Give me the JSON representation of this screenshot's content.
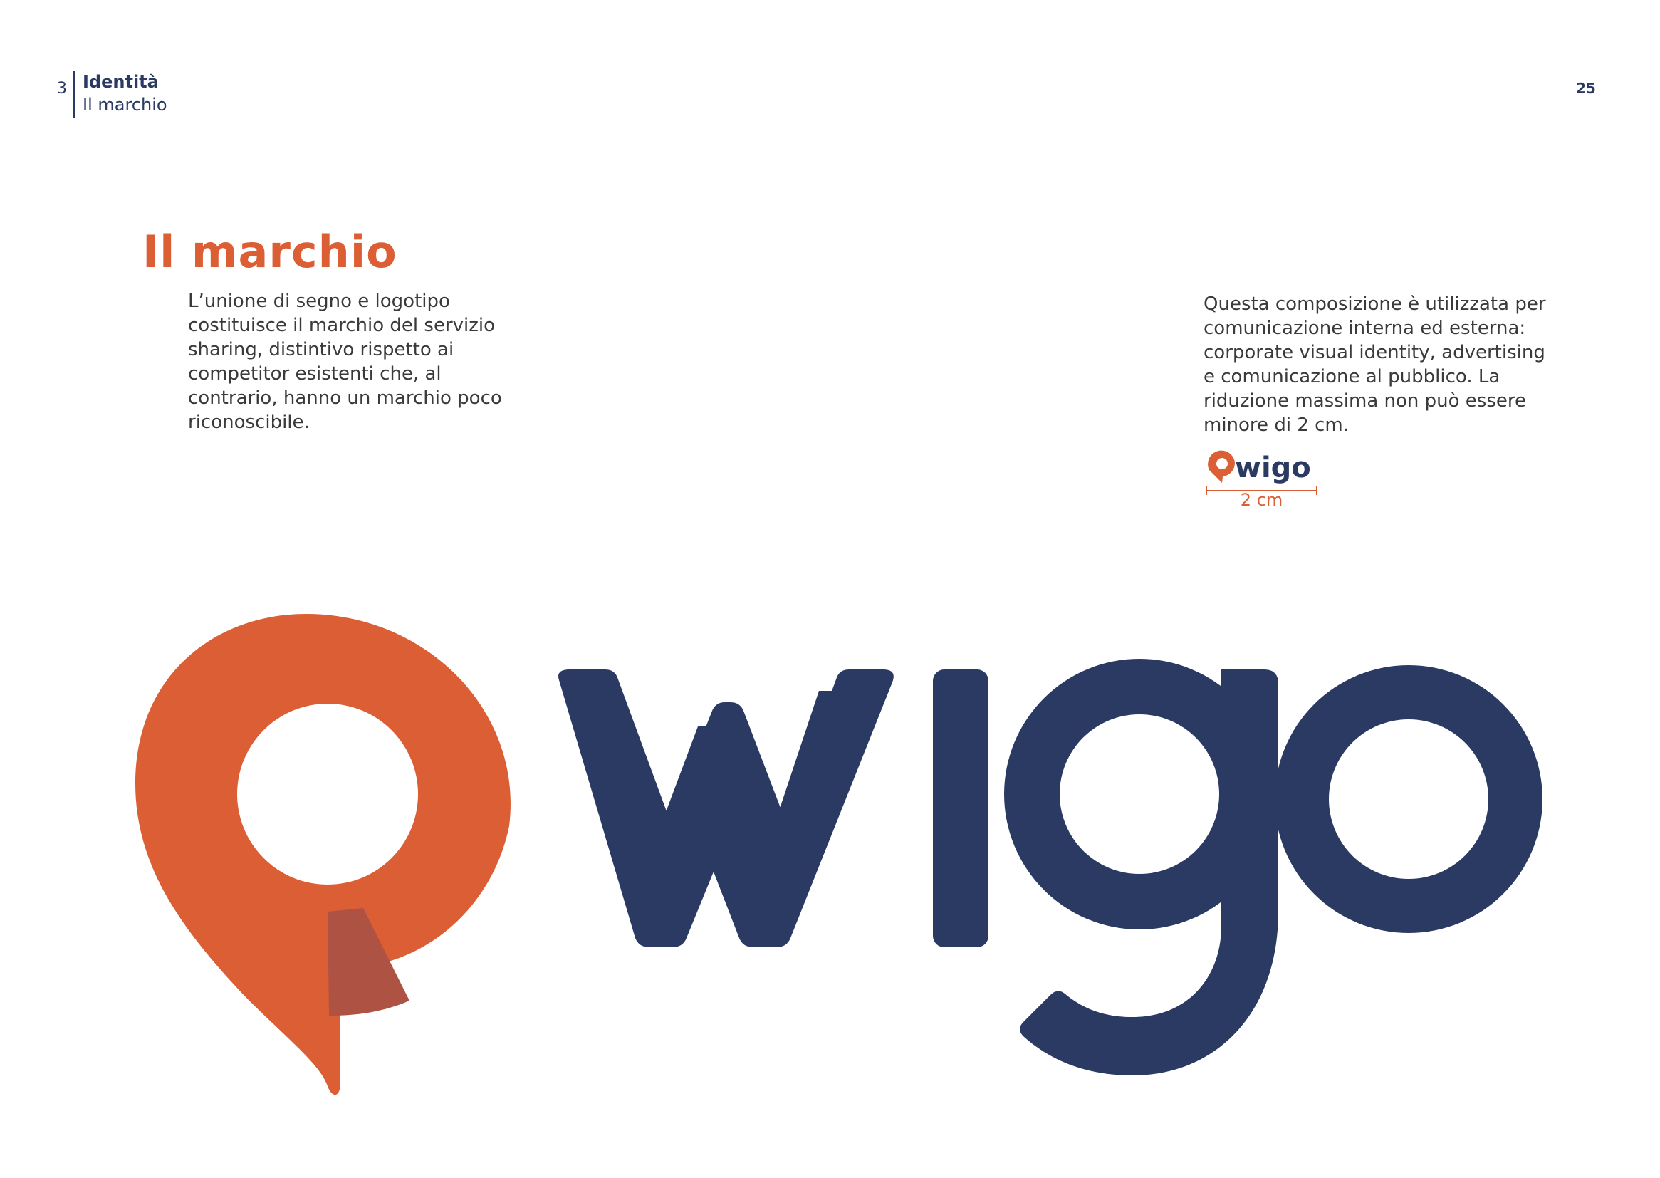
{
  "header": {
    "chapter_number": "3",
    "section": "Identità",
    "subsection": "Il marchio"
  },
  "page_number": "25",
  "title": "Il marchio",
  "intro_lines": [
    "L’unione di segno e logotipo",
    "costituisce il marchio del servizio",
    "sharing, distintivo rispetto ai",
    "competitor esistenti che, al",
    "contrario, hanno un marchio poco",
    "riconoscibile."
  ],
  "usage_lines": [
    "Questa composizione è utilizzata per",
    "comunicazione interna ed esterna:",
    "corporate visual identity, advertising",
    "e comunicazione al pubblico. La",
    "riduzione massima non può essere",
    "minore di 2 cm."
  ],
  "min_size_label": "2 cm",
  "logo": {
    "wordmark": "wigo",
    "colors": {
      "orange": "#db5e35",
      "shadow": "#ae5244",
      "navy": "#2a3a63"
    }
  }
}
